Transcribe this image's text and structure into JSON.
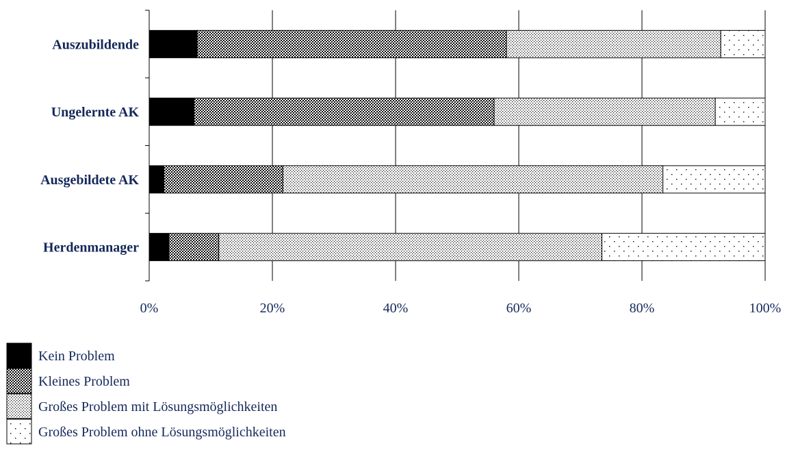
{
  "chart_data": {
    "type": "bar",
    "orientation": "horizontal",
    "stacked": "percent",
    "categories": [
      "Auszubildende",
      "Ungelernte AK",
      "Ausgebildete AK",
      "Herdenmanager"
    ],
    "series": [
      {
        "name": "Kein Problem",
        "values": [
          7.8,
          7.3,
          2.4,
          3.2
        ],
        "pattern": "solid",
        "color": "#000000"
      },
      {
        "name": "Kleines Problem",
        "values": [
          50.2,
          48.7,
          19.3,
          8.1
        ],
        "pattern": "dense-cross",
        "color": "#8a8a8a"
      },
      {
        "name": "Großes Problem mit Lösungsmöglichkeiten",
        "values": [
          34.8,
          35.9,
          61.7,
          62.2
        ],
        "pattern": "fine-dots",
        "color": "#c8c8c8"
      },
      {
        "name": "Großes Problem ohne Lösungsmöglichkeiten",
        "values": [
          7.2,
          8.1,
          16.6,
          26.5
        ],
        "pattern": "sparse-dots",
        "color": "#ffffff"
      }
    ],
    "xlim": [
      0,
      100
    ],
    "x_ticks": [
      "0%",
      "20%",
      "40%",
      "60%",
      "80%",
      "100%"
    ],
    "xlabel": "",
    "ylabel": "",
    "title": "",
    "grid": "vertical",
    "legend_position": "bottom-left"
  }
}
